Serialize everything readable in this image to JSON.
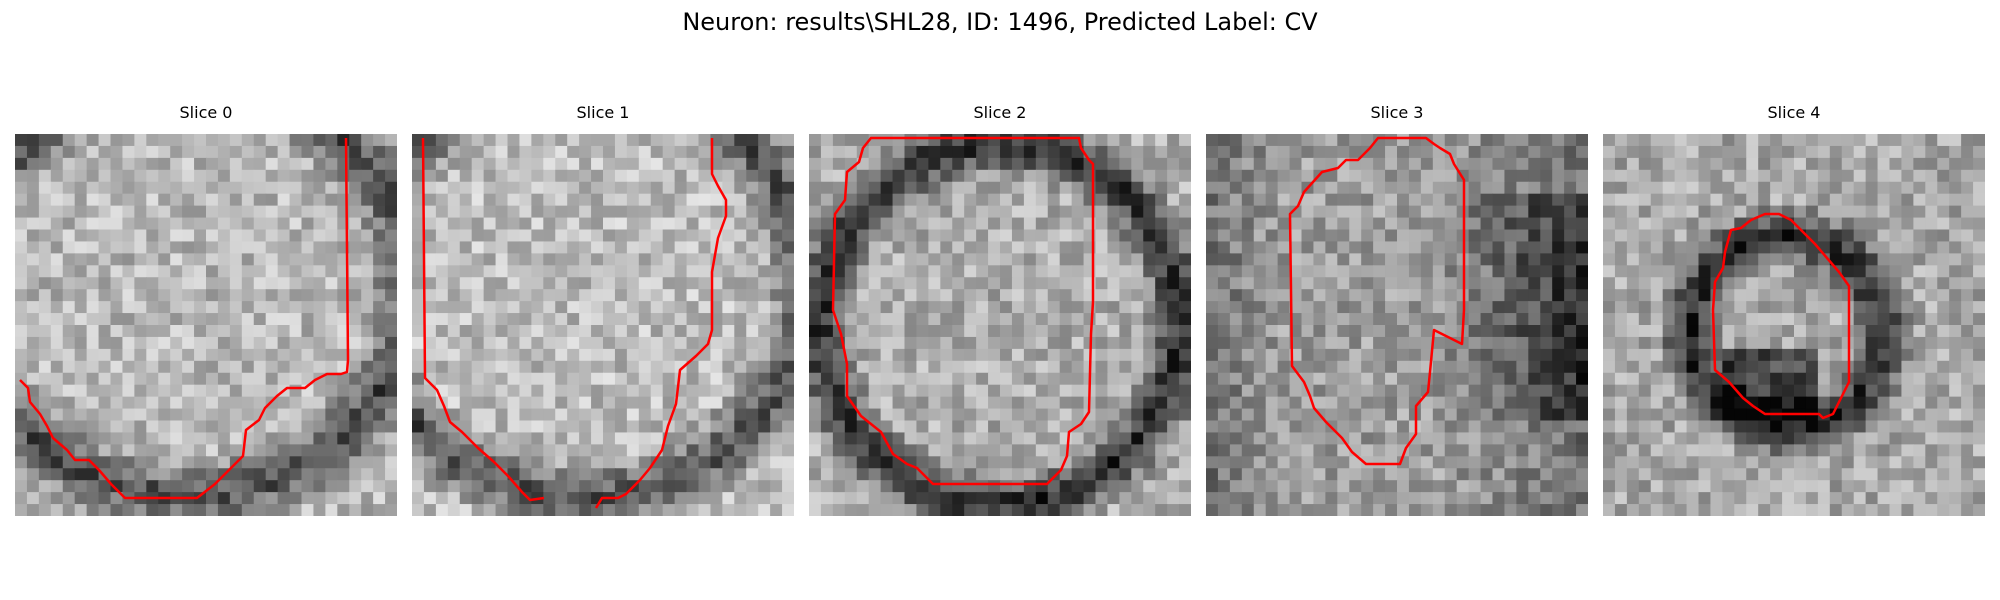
{
  "figure": {
    "title": "Neuron: results\\SHL28, ID: 1496, Predicted Label: CV",
    "contour_color": "#ff0000"
  },
  "panels": [
    {
      "title": "Slice 0",
      "seed": 11,
      "base": 0.72,
      "dark": "edge-right-bottom"
    },
    {
      "title": "Slice 1",
      "seed": 23,
      "base": 0.74,
      "dark": "edge-right-bottom"
    },
    {
      "title": "Slice 2",
      "seed": 37,
      "base": 0.68,
      "dark": "ring"
    },
    {
      "title": "Slice 3",
      "seed": 53,
      "base": 0.62,
      "dark": "right"
    },
    {
      "title": "Slice 4",
      "seed": 71,
      "base": 0.66,
      "dark": "small-ring"
    }
  ]
}
